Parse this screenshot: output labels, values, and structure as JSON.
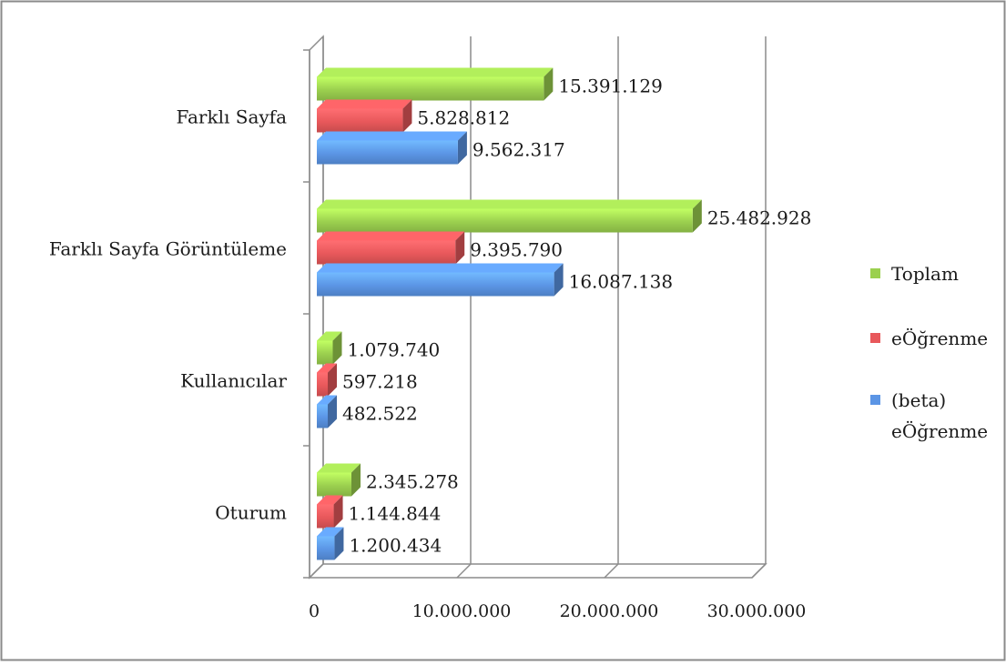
{
  "chart_data": {
    "type": "bar",
    "orientation": "horizontal",
    "style": "3d-clustered",
    "title": "",
    "xlabel": "",
    "ylabel": "",
    "categories": [
      "Farklı Sayfa",
      "Farklı Sayfa Görüntüleme",
      "Kullanıcılar",
      "Oturum"
    ],
    "series": [
      {
        "name": "Toplam",
        "color": "#9bd04f",
        "values": [
          15391129,
          25482928,
          1079740,
          2345278
        ],
        "labels": [
          "15.391.129",
          "25.482.928",
          "1.079.740",
          "2.345.278"
        ]
      },
      {
        "name": "eÖğrenme",
        "color": "#e8585b",
        "values": [
          5828812,
          9395790,
          597218,
          1144844
        ],
        "labels": [
          "5.828.812",
          "9.395.790",
          "597.218",
          "1.144.844"
        ]
      },
      {
        "name": "(beta) eÖğrenme",
        "color": "#5b95e5",
        "values": [
          9562317,
          16087138,
          482522,
          1200434
        ],
        "labels": [
          "9.562.317",
          "16.087.138",
          "482.522",
          "1.200.434"
        ]
      }
    ],
    "xlim": [
      0,
      30000000
    ],
    "x_ticks": [
      0,
      10000000,
      20000000,
      30000000
    ],
    "x_tick_labels": [
      "0",
      "10.000.000",
      "20.000.000",
      "30.000.000"
    ],
    "grid": true,
    "legend_position": "right",
    "legend_lines": [
      [
        "Toplam"
      ],
      [
        "eÖğrenme"
      ],
      [
        "(beta)",
        "eÖğrenme"
      ]
    ]
  }
}
